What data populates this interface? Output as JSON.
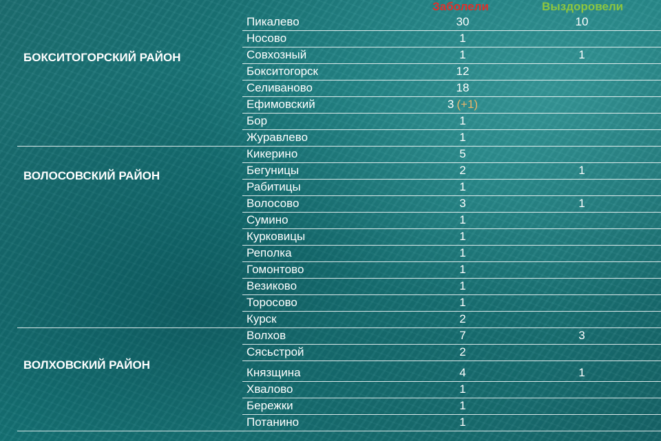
{
  "header": {
    "sick_label": "Заболели",
    "recovered_label": "Выздоровели"
  },
  "colors": {
    "sick": "#e0302a",
    "recovered": "#8cc63f",
    "delta": "#e8b46a"
  },
  "districts": [
    {
      "name": "БОКСИТОГОРСКИЙ РАЙОН",
      "rows": [
        {
          "name": "Пикалево",
          "sick": "30",
          "recovered": "10"
        },
        {
          "name": "Носово",
          "sick": "1",
          "recovered": ""
        },
        {
          "name": "Совхозный",
          "sick": "1",
          "recovered": "1"
        },
        {
          "name": "Бокситогорск",
          "sick": "12",
          "recovered": ""
        },
        {
          "name": "Селиваново",
          "sick": "18",
          "recovered": ""
        },
        {
          "name": "Ефимовский",
          "sick": "3",
          "sick_delta": "(+1)",
          "recovered": ""
        },
        {
          "name": "Бор",
          "sick": "1",
          "recovered": ""
        },
        {
          "name": "Журавлево",
          "sick": "1",
          "recovered": ""
        }
      ]
    },
    {
      "name": "ВОЛОСОВСКИЙ РАЙОН",
      "rows": [
        {
          "name": "Кикерино",
          "sick": "5",
          "recovered": ""
        },
        {
          "name": "Бегуницы",
          "sick": "2",
          "recovered": "1"
        },
        {
          "name": "Рабитицы",
          "sick": "1",
          "recovered": ""
        },
        {
          "name": "Волосово",
          "sick": "3",
          "recovered": "1"
        },
        {
          "name": "Сумино",
          "sick": "1",
          "recovered": ""
        },
        {
          "name": "Курковицы",
          "sick": "1",
          "recovered": ""
        },
        {
          "name": "Реполка",
          "sick": "1",
          "recovered": ""
        },
        {
          "name": "Гомонтово",
          "sick": "1",
          "recovered": ""
        },
        {
          "name": "Везиково",
          "sick": "1",
          "recovered": ""
        },
        {
          "name": "Торосово",
          "sick": "1",
          "recovered": ""
        },
        {
          "name": "Курск",
          "sick": "2",
          "recovered": ""
        }
      ]
    },
    {
      "name": "ВОЛХОВСКИЙ РАЙОН",
      "rows": [
        {
          "name": "Волхов",
          "sick": "7",
          "recovered": "3"
        },
        {
          "name": "Сясьстрой",
          "sick": "2",
          "recovered": ""
        },
        {
          "name": "Князщина",
          "sick": "4",
          "recovered": "1"
        },
        {
          "name": "Хвалово",
          "sick": "1",
          "recovered": ""
        },
        {
          "name": "Бережки",
          "sick": "1",
          "recovered": ""
        },
        {
          "name": "Потанино",
          "sick": "1",
          "recovered": ""
        }
      ]
    }
  ]
}
